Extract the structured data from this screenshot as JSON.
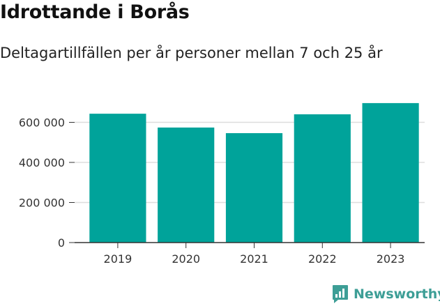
{
  "chart_data": {
    "type": "bar",
    "title": "Idrottande i Borås",
    "subtitle": "Deltagartillfällen per år personer mellan 7 och 25 år",
    "categories": [
      "2019",
      "2020",
      "2021",
      "2022",
      "2023"
    ],
    "values": [
      643000,
      574000,
      546000,
      640000,
      696000
    ],
    "ylim": [
      0,
      720000
    ],
    "yticks": [
      0,
      200000,
      400000,
      600000
    ],
    "ytick_labels": [
      "0",
      "200 000",
      "400 000",
      "600 000"
    ],
    "grid": true,
    "colors": {
      "bar": "#00a39a",
      "grid": "#dddddd",
      "axis": "#333333"
    }
  },
  "brand": {
    "name": "Newsworthy",
    "icon": "newsworthy-logo-icon",
    "color": "#3d9e96"
  }
}
